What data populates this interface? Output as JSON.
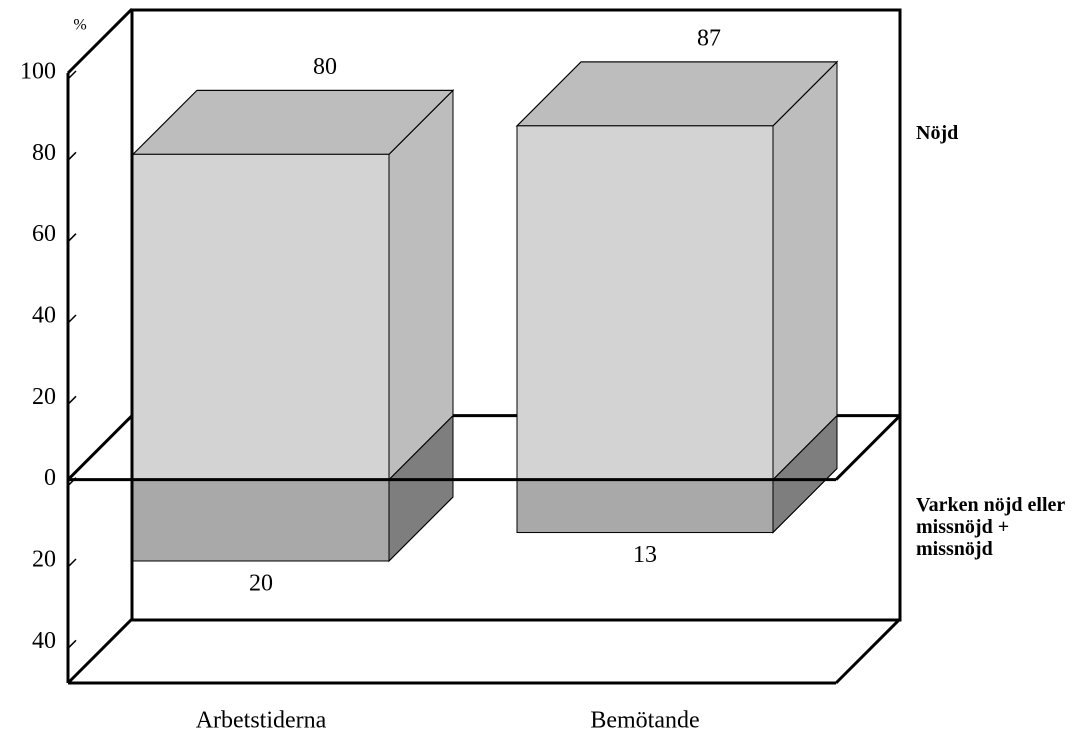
{
  "chart_data": {
    "type": "bar3d",
    "y_label": "%",
    "categories": [
      "Arbetstiderna",
      "Bemötande"
    ],
    "series": [
      {
        "name": "Nöjd",
        "color": "#d3d3d3",
        "values": [
          80,
          87
        ]
      },
      {
        "name": "Varken nöjd eller missnöjd + missnöjd",
        "color": "#a9a9a9",
        "values": [
          -20,
          -13
        ],
        "value_labels": [
          "20",
          "13"
        ]
      }
    ],
    "ylim": [
      -50,
      100
    ],
    "yticks": [
      {
        "value": -40,
        "label": "40"
      },
      {
        "value": -20,
        "label": "20"
      },
      0,
      20,
      40,
      60,
      80,
      100
    ]
  }
}
